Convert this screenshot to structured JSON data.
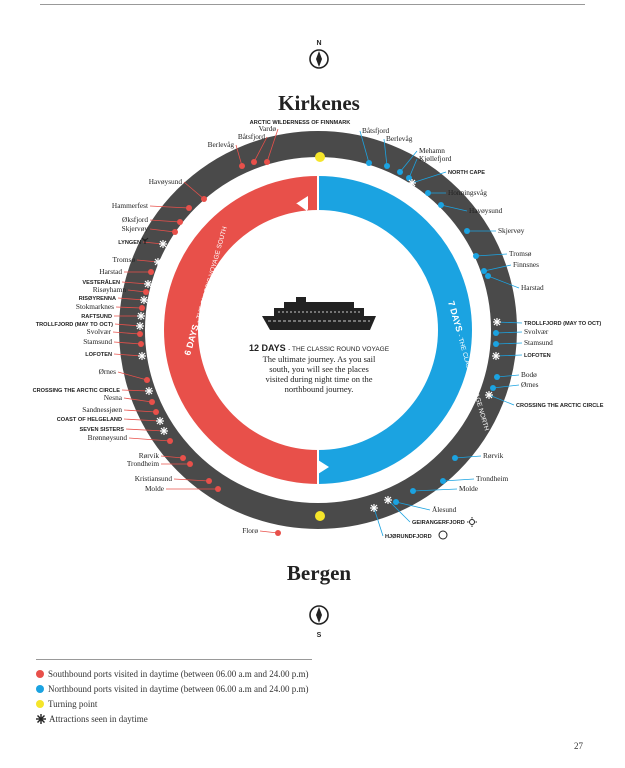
{
  "colors": {
    "southbound": "#e8504a",
    "northbound": "#1ba3e1",
    "turning": "#f5e52a",
    "ring": "#4a4a4a",
    "text": "#222222"
  },
  "top_compass_label": "N",
  "bottom_compass_label": "S",
  "north_title": "Kirkenes",
  "south_title": "Bergen",
  "center": {
    "icon": "ship-icon",
    "title_bold": "12 DAYS",
    "title_light": "- THE CLASSIC ROUND VOYAGE",
    "line1": "The ultimate journey. As you sail",
    "line2": "south, you will see the places",
    "line3": "visited during night time on the",
    "line4": "northbound journey."
  },
  "south_arc_label": "6 DAYS",
  "south_arc_sub": "- THE CLASSIC VOYAGE SOUTH",
  "north_arc_label": "7 DAYS",
  "north_arc_sub": "- THE CLASSIC VOYAGE NORTH",
  "left_labels": [
    {
      "text": "ARCTIC WILDERNESS OF FINNMARK",
      "bold": true
    },
    {
      "text": "Vardø",
      "bold": false
    },
    {
      "text": "Båtsfjord",
      "bold": false
    },
    {
      "text": "Berlevåg",
      "bold": false
    },
    {
      "text": "Havøysund",
      "bold": false
    },
    {
      "text": "Hammerfest",
      "bold": false
    },
    {
      "text": "Øksfjord",
      "bold": false
    },
    {
      "text": "Skjervøy",
      "bold": false
    },
    {
      "text": "LYNGEN",
      "bold": true
    },
    {
      "text": "Tromsø",
      "bold": false
    },
    {
      "text": "Harstad",
      "bold": false
    },
    {
      "text": "VESTERÅLEN",
      "bold": true
    },
    {
      "text": "Risøyhamn",
      "bold": false
    },
    {
      "text": "RISØYRENNA",
      "bold": true
    },
    {
      "text": "Stokmarknes",
      "bold": false
    },
    {
      "text": "RAFTSUND",
      "bold": true
    },
    {
      "text": "TROLLFJORD (MAY TO OCT)",
      "bold": true
    },
    {
      "text": "Svolvær",
      "bold": false
    },
    {
      "text": "Stamsund",
      "bold": false
    },
    {
      "text": "LOFOTEN",
      "bold": true
    },
    {
      "text": "Ørnes",
      "bold": false
    },
    {
      "text": "CROSSING THE ARCTIC CIRCLE",
      "bold": true
    },
    {
      "text": "Nesna",
      "bold": false
    },
    {
      "text": "Sandnessjøen",
      "bold": false
    },
    {
      "text": "COAST OF HELGELAND",
      "bold": true
    },
    {
      "text": "SEVEN SISTERS",
      "bold": true
    },
    {
      "text": "Brønnøysund",
      "bold": false
    },
    {
      "text": "Rørvik",
      "bold": false
    },
    {
      "text": "Trondheim",
      "bold": false
    },
    {
      "text": "Kristiansund",
      "bold": false
    },
    {
      "text": "Molde",
      "bold": false
    },
    {
      "text": "Florø",
      "bold": false
    }
  ],
  "right_labels": [
    {
      "text": "Båtsfjord",
      "bold": false
    },
    {
      "text": "Berlevåg",
      "bold": false
    },
    {
      "text": "Mehamn",
      "bold": false
    },
    {
      "text": "Kjøllefjord",
      "bold": false
    },
    {
      "text": "NORTH CAPE",
      "bold": true
    },
    {
      "text": "Honningsvåg",
      "bold": false
    },
    {
      "text": "Havøysund",
      "bold": false
    },
    {
      "text": "Skjervøy",
      "bold": false
    },
    {
      "text": "Tromsø",
      "bold": false
    },
    {
      "text": "Finnsnes",
      "bold": false
    },
    {
      "text": "Harstad",
      "bold": false
    },
    {
      "text": "TROLLFJORD (MAY TO OCT)",
      "bold": true
    },
    {
      "text": "Svolvær",
      "bold": false
    },
    {
      "text": "Stamsund",
      "bold": false
    },
    {
      "text": "LOFOTEN",
      "bold": true
    },
    {
      "text": "Bodø",
      "bold": false
    },
    {
      "text": "Ørnes",
      "bold": false
    },
    {
      "text": "CROSSING THE ARCTIC CIRCLE",
      "bold": true
    },
    {
      "text": "Rørvik",
      "bold": false
    },
    {
      "text": "Trondheim",
      "bold": false
    },
    {
      "text": "Molde",
      "bold": false
    },
    {
      "text": "Ålesund",
      "bold": false
    },
    {
      "text": "GEIRANGERFJORD",
      "bold": true
    },
    {
      "text": "HJØRUNDFJORD",
      "bold": true
    }
  ],
  "legend": [
    {
      "text": "Southbound ports visited in daytime (between 06.00 a.m and 24.00 p.m)",
      "kind": "dot",
      "color": "#e8504a"
    },
    {
      "text": "Northbound ports visited in daytime (between 06.00 a.m and 24.00 p.m)",
      "kind": "dot",
      "color": "#1ba3e1"
    },
    {
      "text": "Turning point",
      "kind": "dot",
      "color": "#f5e52a"
    },
    {
      "text": "Attractions seen in daytime",
      "kind": "star",
      "color": "#222222"
    }
  ],
  "page_number": "27"
}
